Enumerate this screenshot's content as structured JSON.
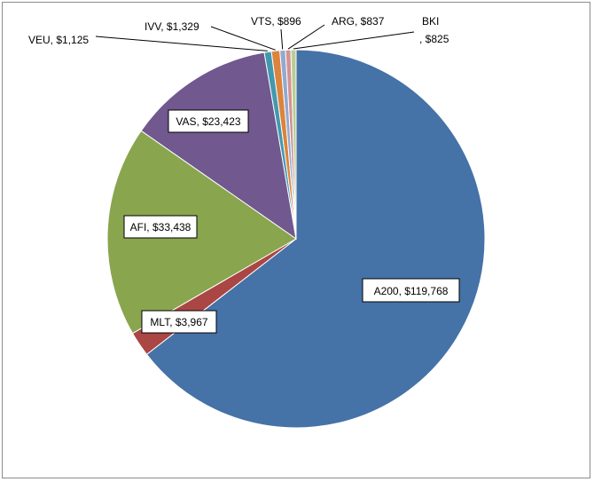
{
  "chart_data": {
    "type": "pie",
    "title": "",
    "show_legend": false,
    "slices": [
      {
        "label": "A200",
        "value": 119768,
        "display": "A200, $119,768",
        "color": "#4572A7"
      },
      {
        "label": "MLT",
        "value": 3967,
        "display": "MLT, $3,967",
        "color": "#AA4643"
      },
      {
        "label": "AFI",
        "value": 33438,
        "display": "AFI, $33,438",
        "color": "#89A54E"
      },
      {
        "label": "VAS",
        "value": 23423,
        "display": "VAS, $23,423",
        "color": "#71588F"
      },
      {
        "label": "VEU",
        "value": 1125,
        "display": "VEU, $1,125",
        "color": "#4198AF"
      },
      {
        "label": "IVV",
        "value": 1329,
        "display": "IVV, $1,329",
        "color": "#DB843D"
      },
      {
        "label": "VTS",
        "value": 896,
        "display": "VTS, $896",
        "color": "#93A9CF"
      },
      {
        "label": "ARG",
        "value": 837,
        "display": "ARG, $837",
        "color": "#D19392"
      },
      {
        "label": "BKI",
        "value": 825,
        "display_line1": "BKI",
        "display_line2": ", $825",
        "color": "#B9CD96"
      }
    ]
  }
}
